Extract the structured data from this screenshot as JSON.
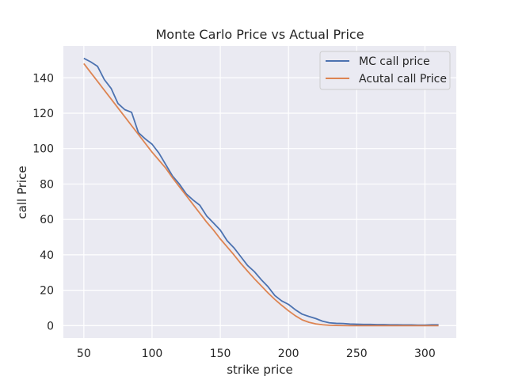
{
  "chart_data": {
    "type": "line",
    "title": "Monte Carlo Price vs Actual Price",
    "xlabel": "strike price",
    "ylabel": "call Price",
    "xlim": [
      35,
      323
    ],
    "ylim": [
      -7,
      158
    ],
    "xticks": [
      50,
      100,
      150,
      200,
      250,
      300
    ],
    "yticks": [
      0,
      20,
      40,
      60,
      80,
      100,
      120,
      140
    ],
    "grid": true,
    "legend": "top-right",
    "x": [
      50,
      55,
      60,
      65,
      70,
      75,
      80,
      85,
      90,
      95,
      100,
      105,
      110,
      115,
      120,
      125,
      130,
      135,
      140,
      145,
      150,
      155,
      160,
      165,
      170,
      175,
      180,
      185,
      190,
      195,
      200,
      205,
      210,
      215,
      220,
      225,
      230,
      235,
      240,
      245,
      250,
      255,
      260,
      265,
      270,
      275,
      280,
      285,
      290,
      295,
      300,
      305,
      310
    ],
    "series": [
      {
        "name": "MC call price",
        "color": "#4c72b0",
        "values": [
          151,
          149,
          146.5,
          139,
          134,
          125.5,
          122,
          120.5,
          109,
          105.5,
          102.5,
          97.5,
          91,
          84.5,
          80,
          74.5,
          71,
          68,
          62,
          58,
          54,
          48,
          44,
          39,
          34,
          30.5,
          26,
          22,
          17,
          14,
          12,
          9,
          6.5,
          5.2,
          4,
          2.5,
          1.6,
          1.3,
          1.2,
          0.9,
          0.8,
          0.7,
          0.7,
          0.6,
          0.6,
          0.5,
          0.5,
          0.4,
          0.4,
          0.3,
          0.3,
          0.5,
          0.5
        ]
      },
      {
        "name": "Acutal call Price",
        "color": "#dd8452",
        "values": [
          148,
          143,
          138,
          133,
          128,
          123,
          118,
          113,
          108,
          103,
          98,
          93.5,
          89,
          83.5,
          78.5,
          73.5,
          68.5,
          63.5,
          58.5,
          54,
          49,
          44.5,
          40,
          35.2,
          30.8,
          26.5,
          22.5,
          18.5,
          14.8,
          11.5,
          8.4,
          5.6,
          3.3,
          1.9,
          1,
          0.5,
          0.2,
          0.1,
          0.05,
          0,
          0,
          0,
          0,
          0,
          0,
          0,
          0,
          0,
          0,
          0,
          0,
          0,
          0
        ]
      }
    ]
  }
}
